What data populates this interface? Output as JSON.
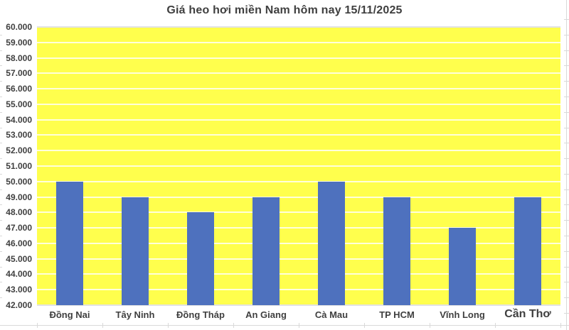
{
  "title": "Giá heo hơi miền Nam hôm nay 15/11/2025",
  "chart_data": {
    "type": "bar",
    "title": "Giá heo hơi miền Nam hôm nay 15/11/2025",
    "categories": [
      "Đồng Nai",
      "Tây Ninh",
      "Đồng Tháp",
      "An Giang",
      "Cà Mau",
      "TP HCM",
      "Vĩnh Long",
      "Cần Thơ"
    ],
    "values": [
      50000,
      49000,
      48000,
      49000,
      50000,
      49000,
      47000,
      49000
    ],
    "emphasized_category": "Cần Thơ",
    "xlabel": "",
    "ylabel": "",
    "ylim": [
      42000,
      60000
    ],
    "ytick_step": 1000,
    "ytick_labels": [
      "60.000",
      "59.000",
      "58.000",
      "57.000",
      "56.000",
      "55.000",
      "54.000",
      "53.000",
      "52.000",
      "51.000",
      "50.000",
      "49.000",
      "48.000",
      "47.000",
      "46.000",
      "45.000",
      "44.000",
      "43.000",
      "42.000"
    ],
    "grid": true,
    "legend": false,
    "colors": {
      "bar": "#4e71be",
      "plot_background": "#ffff4d",
      "gridline": "#ffffff",
      "axis_text": "#3f3f3f",
      "title_text": "#3f3f3f",
      "sheet_line": "#d9d9d9",
      "chart_background": "#ffffff"
    }
  }
}
